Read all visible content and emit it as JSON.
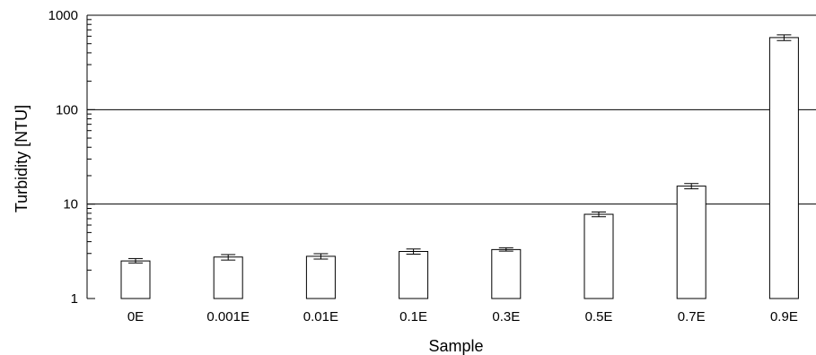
{
  "chart_data": {
    "type": "bar",
    "title": "",
    "xlabel": "Sample",
    "ylabel": "Turbidity [NTU]",
    "yscale": "log",
    "ylim": [
      1,
      1000
    ],
    "yticks": [
      1,
      10,
      100,
      1000
    ],
    "yticklabels": [
      "1",
      "10",
      "100",
      "1000"
    ],
    "grid": "horizontal at 10 and 100",
    "categories": [
      "0E",
      "0.001E",
      "0.01E",
      "0.1E",
      "0.3E",
      "0.5E",
      "0.7E",
      "0.9E"
    ],
    "values": [
      2.5,
      2.75,
      2.8,
      3.15,
      3.3,
      7.8,
      15.5,
      580
    ],
    "error_low": [
      2.38,
      2.55,
      2.62,
      2.95,
      3.18,
      7.35,
      14.5,
      540
    ],
    "error_high": [
      2.65,
      2.92,
      2.98,
      3.35,
      3.45,
      8.25,
      16.5,
      620
    ],
    "bar_fill": "#ffffff",
    "bar_stroke": "#000000"
  }
}
